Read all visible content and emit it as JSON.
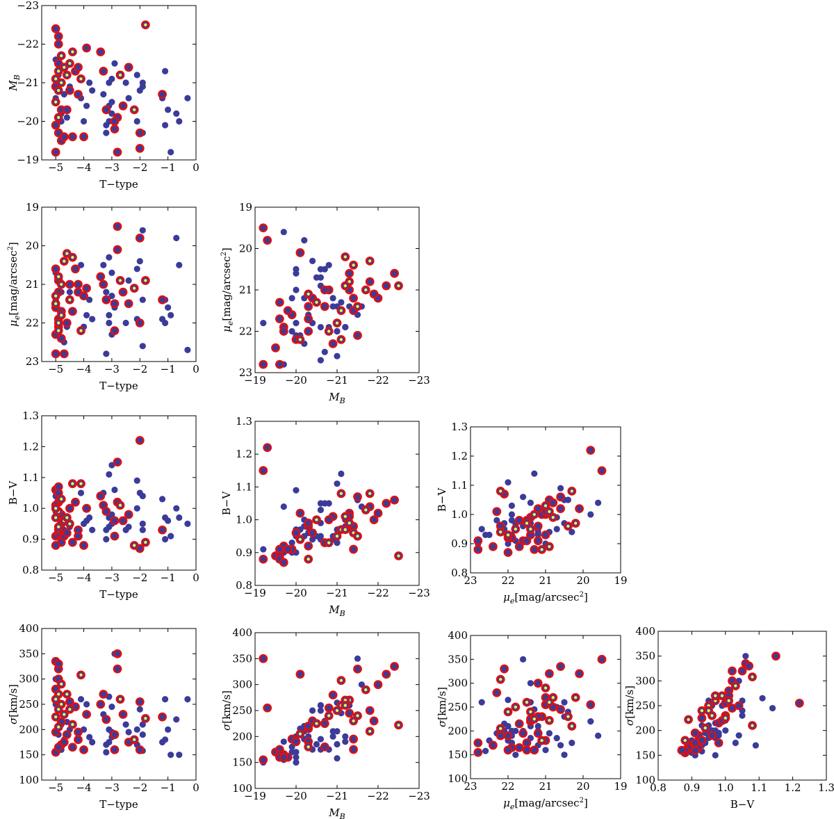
{
  "colors": {
    "base_point": "#3b3b9a",
    "ring": "#e01010",
    "core": "#f4f040",
    "axis": "#000000"
  },
  "chart_data": [
    {
      "type": "scatter",
      "name": "T-type vs M_B",
      "xvar": "T",
      "yvar": "MB",
      "xlabel": "T−type",
      "ylabel": "M_B",
      "xlim": [
        -5.5,
        0
      ],
      "ylim": [
        -19,
        -23
      ],
      "xticks": [
        -5,
        -4,
        -3,
        -2,
        -1,
        0
      ],
      "yticks": [
        -19,
        -20,
        -21,
        -22,
        -23
      ]
    },
    {
      "type": "scatter",
      "name": "T-type vs mu_e",
      "xvar": "T",
      "yvar": "MU",
      "xlabel": "T−type",
      "ylabel": "μe[mag/arcsec²]",
      "xlim": [
        -5.5,
        0
      ],
      "ylim": [
        23,
        19
      ],
      "xticks": [
        -5,
        -4,
        -3,
        -2,
        -1,
        0
      ],
      "yticks": [
        19,
        20,
        21,
        22,
        23
      ]
    },
    {
      "type": "scatter",
      "name": "M_B vs mu_e",
      "xvar": "MB",
      "yvar": "MU",
      "xlabel": "M_B",
      "ylabel": "μe[mag/arcsec²]",
      "xlim": [
        -19,
        -23
      ],
      "ylim": [
        23,
        19
      ],
      "xticks": [
        -19,
        -20,
        -21,
        -22,
        -23
      ],
      "yticks": [
        19,
        20,
        21,
        22,
        23
      ]
    },
    {
      "type": "scatter",
      "name": "T-type vs B-V",
      "xvar": "T",
      "yvar": "BV",
      "xlabel": "T−type",
      "ylabel": "B−V",
      "xlim": [
        -5.5,
        0
      ],
      "ylim": [
        0.8,
        1.3
      ],
      "xticks": [
        -5,
        -4,
        -3,
        -2,
        -1,
        0
      ],
      "yticks": [
        0.8,
        0.9,
        1.0,
        1.1,
        1.2,
        1.3
      ]
    },
    {
      "type": "scatter",
      "name": "M_B vs B-V",
      "xvar": "MB",
      "yvar": "BV",
      "xlabel": "M_B",
      "ylabel": "B−V",
      "xlim": [
        -19,
        -23
      ],
      "ylim": [
        0.8,
        1.3
      ],
      "xticks": [
        -19,
        -20,
        -21,
        -22,
        -23
      ],
      "yticks": [
        0.8,
        0.9,
        1.0,
        1.1,
        1.2,
        1.3
      ]
    },
    {
      "type": "scatter",
      "name": "mu_e vs B-V",
      "xvar": "MU",
      "yvar": "BV",
      "xlabel": "μe[mag/arcsec²]",
      "ylabel": "B−V",
      "xlim": [
        23,
        19
      ],
      "ylim": [
        0.8,
        1.3
      ],
      "xticks": [
        23,
        22,
        21,
        20,
        19
      ],
      "yticks": [
        0.8,
        0.9,
        1.0,
        1.1,
        1.2,
        1.3
      ]
    },
    {
      "type": "scatter",
      "name": "T-type vs sigma",
      "xvar": "T",
      "yvar": "SG",
      "xlabel": "T−type",
      "ylabel": "σ[km/s]",
      "xlim": [
        -5.5,
        0
      ],
      "ylim": [
        100,
        400
      ],
      "xticks": [
        -5,
        -4,
        -3,
        -2,
        -1,
        0
      ],
      "yticks": [
        100,
        150,
        200,
        250,
        300,
        350,
        400
      ]
    },
    {
      "type": "scatter",
      "name": "M_B vs sigma",
      "xvar": "MB",
      "yvar": "SG",
      "xlabel": "M_B",
      "ylabel": "σ[km/s]",
      "xlim": [
        -19,
        -23
      ],
      "ylim": [
        100,
        400
      ],
      "xticks": [
        -19,
        -20,
        -21,
        -22,
        -23
      ],
      "yticks": [
        100,
        150,
        200,
        250,
        300,
        350,
        400
      ]
    },
    {
      "type": "scatter",
      "name": "mu_e vs sigma",
      "xvar": "MU",
      "yvar": "SG",
      "xlabel": "μe[mag/arcsec²]",
      "ylabel": "σ[km/s]",
      "xlim": [
        23,
        19
      ],
      "ylim": [
        100,
        400
      ],
      "xticks": [
        23,
        22,
        21,
        20,
        19
      ],
      "yticks": [
        100,
        150,
        200,
        250,
        300,
        350,
        400
      ]
    },
    {
      "type": "scatter",
      "name": "B-V vs sigma",
      "xvar": "BV",
      "yvar": "SG",
      "xlabel": "B−V",
      "ylabel": "σ[km/s]",
      "xlim": [
        0.8,
        1.3
      ],
      "ylim": [
        100,
        400
      ],
      "xticks": [
        0.8,
        0.9,
        1.0,
        1.1,
        1.2,
        1.3
      ],
      "yticks": [
        100,
        150,
        200,
        250,
        300,
        350,
        400
      ]
    }
  ],
  "galaxies": {
    "fields": [
      "T",
      "MB",
      "MU",
      "BV",
      "SG",
      "group"
    ],
    "group_legend": {
      "0": "plain",
      "1": "red ring",
      "2": "red ring with yellow center"
    },
    "rows": [
      [
        -5.0,
        -22.4,
        20.6,
        1.06,
        335,
        1
      ],
      [
        -4.9,
        -22.2,
        20.9,
        1.05,
        320,
        1
      ],
      [
        -4.9,
        -22.0,
        21.2,
        1.02,
        300,
        1
      ],
      [
        -4.8,
        -21.7,
        21.0,
        1.03,
        290,
        2
      ],
      [
        -4.9,
        -21.3,
        20.8,
        0.99,
        270,
        2
      ],
      [
        -5.0,
        -21.1,
        21.5,
        0.97,
        260,
        2
      ],
      [
        -4.8,
        -21.0,
        21.8,
        0.95,
        250,
        2
      ],
      [
        -4.9,
        -20.8,
        22.0,
        0.93,
        240,
        2
      ],
      [
        -5.0,
        -20.5,
        21.3,
        1.0,
        225,
        2
      ],
      [
        -4.8,
        -20.3,
        21.7,
        0.98,
        215,
        1
      ],
      [
        -4.9,
        -20.1,
        22.2,
        0.94,
        205,
        2
      ],
      [
        -5.0,
        -19.9,
        21.6,
        0.91,
        195,
        1
      ],
      [
        -4.8,
        -19.5,
        22.4,
        0.89,
        170,
        1
      ],
      [
        -5.0,
        -19.2,
        22.8,
        0.88,
        155,
        1
      ],
      [
        -4.9,
        -21.5,
        22.1,
        1.07,
        330,
        1
      ],
      [
        -5.0,
        -20.9,
        22.3,
        1.01,
        280,
        1
      ],
      [
        -4.7,
        -21.4,
        20.4,
        0.96,
        230,
        2
      ],
      [
        -4.9,
        -19.7,
        21.9,
        0.92,
        165,
        1
      ],
      [
        -5.0,
        -20.6,
        20.7,
        0.99,
        250,
        0
      ],
      [
        -4.8,
        -20.2,
        21.2,
        0.95,
        210,
        0
      ],
      [
        -4.9,
        -21.2,
        21.9,
        0.98,
        190,
        0
      ],
      [
        -4.7,
        -20.7,
        22.5,
        0.93,
        180,
        0
      ],
      [
        -5.0,
        -21.6,
        21.4,
        1.04,
        300,
        0
      ],
      [
        -4.8,
        -20.0,
        21.0,
        0.9,
        160,
        0
      ],
      [
        -4.7,
        -19.6,
        22.8,
        0.91,
        175,
        1
      ],
      [
        -4.6,
        -21.2,
        20.2,
        0.97,
        270,
        2
      ],
      [
        -4.5,
        -20.8,
        21.0,
        1.0,
        255,
        1
      ],
      [
        -4.5,
        -21.5,
        21.4,
        0.95,
        240,
        2
      ],
      [
        -4.4,
        -21.8,
        20.3,
        1.08,
        210,
        2
      ],
      [
        -4.6,
        -20.3,
        22.0,
        0.92,
        190,
        1
      ],
      [
        -4.4,
        -19.6,
        21.7,
        0.89,
        165,
        1
      ],
      [
        -4.5,
        -20.9,
        21.2,
        0.94,
        200,
        0
      ],
      [
        -4.3,
        -21.3,
        20.6,
        1.02,
        245,
        1
      ],
      [
        -4.6,
        -20.1,
        22.1,
        0.97,
        215,
        0
      ],
      [
        -4.2,
        -20.7,
        21.0,
        0.93,
        180,
        1
      ],
      [
        -4.1,
        -21.1,
        22.2,
        1.08,
        308,
        2
      ],
      [
        -4.2,
        -21.4,
        21.2,
        0.91,
        195,
        1
      ],
      [
        -4.0,
        -19.6,
        21.3,
        0.88,
        160,
        1
      ],
      [
        -3.9,
        -20.4,
        21.8,
        0.96,
        250,
        0
      ],
      [
        -3.9,
        -21.9,
        21.1,
        1.0,
        230,
        1
      ],
      [
        -4.0,
        -20.0,
        22.1,
        0.95,
        200,
        0
      ],
      [
        -3.8,
        -21.0,
        21.4,
        0.97,
        185,
        0
      ],
      [
        -4.1,
        -20.6,
        20.5,
        1.05,
        260,
        0
      ],
      [
        -3.7,
        -20.8,
        21.9,
        0.93,
        175,
        0
      ],
      [
        -3.4,
        -21.8,
        20.8,
        1.04,
        250,
        1
      ],
      [
        -3.3,
        -21.3,
        21.0,
        1.01,
        270,
        1
      ],
      [
        -3.2,
        -20.3,
        21.4,
        0.99,
        220,
        1
      ],
      [
        -3.1,
        -20.0,
        21.8,
        0.97,
        200,
        0
      ],
      [
        -3.0,
        -20.5,
        20.7,
        0.95,
        185,
        0
      ],
      [
        -3.2,
        -19.9,
        21.2,
        0.93,
        170,
        0
      ],
      [
        -3.1,
        -21.0,
        22.0,
        1.11,
        265,
        0
      ],
      [
        -3.0,
        -20.2,
        22.3,
        0.98,
        195,
        0
      ],
      [
        -2.9,
        -19.8,
        21.5,
        0.91,
        160,
        1
      ],
      [
        -3.3,
        -20.7,
        20.5,
        1.05,
        230,
        0
      ],
      [
        -3.0,
        -21.1,
        21.3,
        1.14,
        245,
        0
      ],
      [
        -2.8,
        -19.2,
        19.5,
        1.15,
        350,
        1
      ],
      [
        -2.8,
        -20.1,
        20.1,
        1.02,
        320,
        1
      ],
      [
        -2.9,
        -20.0,
        22.2,
        0.96,
        190,
        1
      ],
      [
        -3.1,
        -20.4,
        20.3,
        0.94,
        175,
        0
      ],
      [
        -2.9,
        -21.5,
        21.6,
        1.06,
        350,
        0
      ],
      [
        -3.2,
        -19.7,
        22.8,
        0.9,
        155,
        0
      ],
      [
        -2.7,
        -21.2,
        20.9,
        1.01,
        260,
        2
      ],
      [
        -2.6,
        -20.4,
        21.2,
        0.96,
        230,
        1
      ],
      [
        -2.5,
        -21.0,
        22.0,
        0.93,
        210,
        0
      ],
      [
        -2.4,
        -20.6,
        20.9,
        0.94,
        195,
        0
      ],
      [
        -2.4,
        -21.4,
        21.5,
        0.98,
        175,
        1
      ],
      [
        -2.2,
        -20.3,
        21.1,
        0.88,
        180,
        2
      ],
      [
        -2.1,
        -21.2,
        21.9,
        1.0,
        200,
        0
      ],
      [
        -2.0,
        -19.3,
        19.8,
        1.22,
        255,
        1
      ],
      [
        -2.0,
        -20.8,
        20.4,
        1.05,
        240,
        0
      ],
      [
        -2.0,
        -19.7,
        22.0,
        0.87,
        160,
        1
      ],
      [
        -1.9,
        -20.9,
        21.4,
        0.95,
        210,
        0
      ],
      [
        -1.8,
        -22.5,
        20.9,
        0.89,
        222,
        2
      ],
      [
        -2.1,
        -20.0,
        20.6,
        1.09,
        170,
        0
      ],
      [
        -1.9,
        -21.0,
        22.6,
        0.93,
        158,
        0
      ],
      [
        -1.9,
        -19.7,
        19.6,
        1.04,
        190,
        0
      ],
      [
        -1.1,
        -21.3,
        21.4,
        0.97,
        260,
        0
      ],
      [
        -1.2,
        -20.7,
        21.4,
        0.93,
        225,
        1
      ],
      [
        -1.0,
        -20.3,
        21.6,
        0.96,
        200,
        0
      ],
      [
        -1.1,
        -19.9,
        22.0,
        0.9,
        180,
        0
      ],
      [
        -1.2,
        -20.6,
        21.9,
        1.03,
        175,
        0
      ],
      [
        -0.9,
        -19.2,
        21.8,
        0.91,
        150,
        0
      ],
      [
        -0.7,
        -20.2,
        19.8,
        1.0,
        220,
        0
      ],
      [
        -0.6,
        -20.0,
        20.5,
        0.97,
        150,
        0
      ],
      [
        -0.3,
        -20.6,
        22.7,
        0.95,
        260,
        0
      ]
    ]
  }
}
